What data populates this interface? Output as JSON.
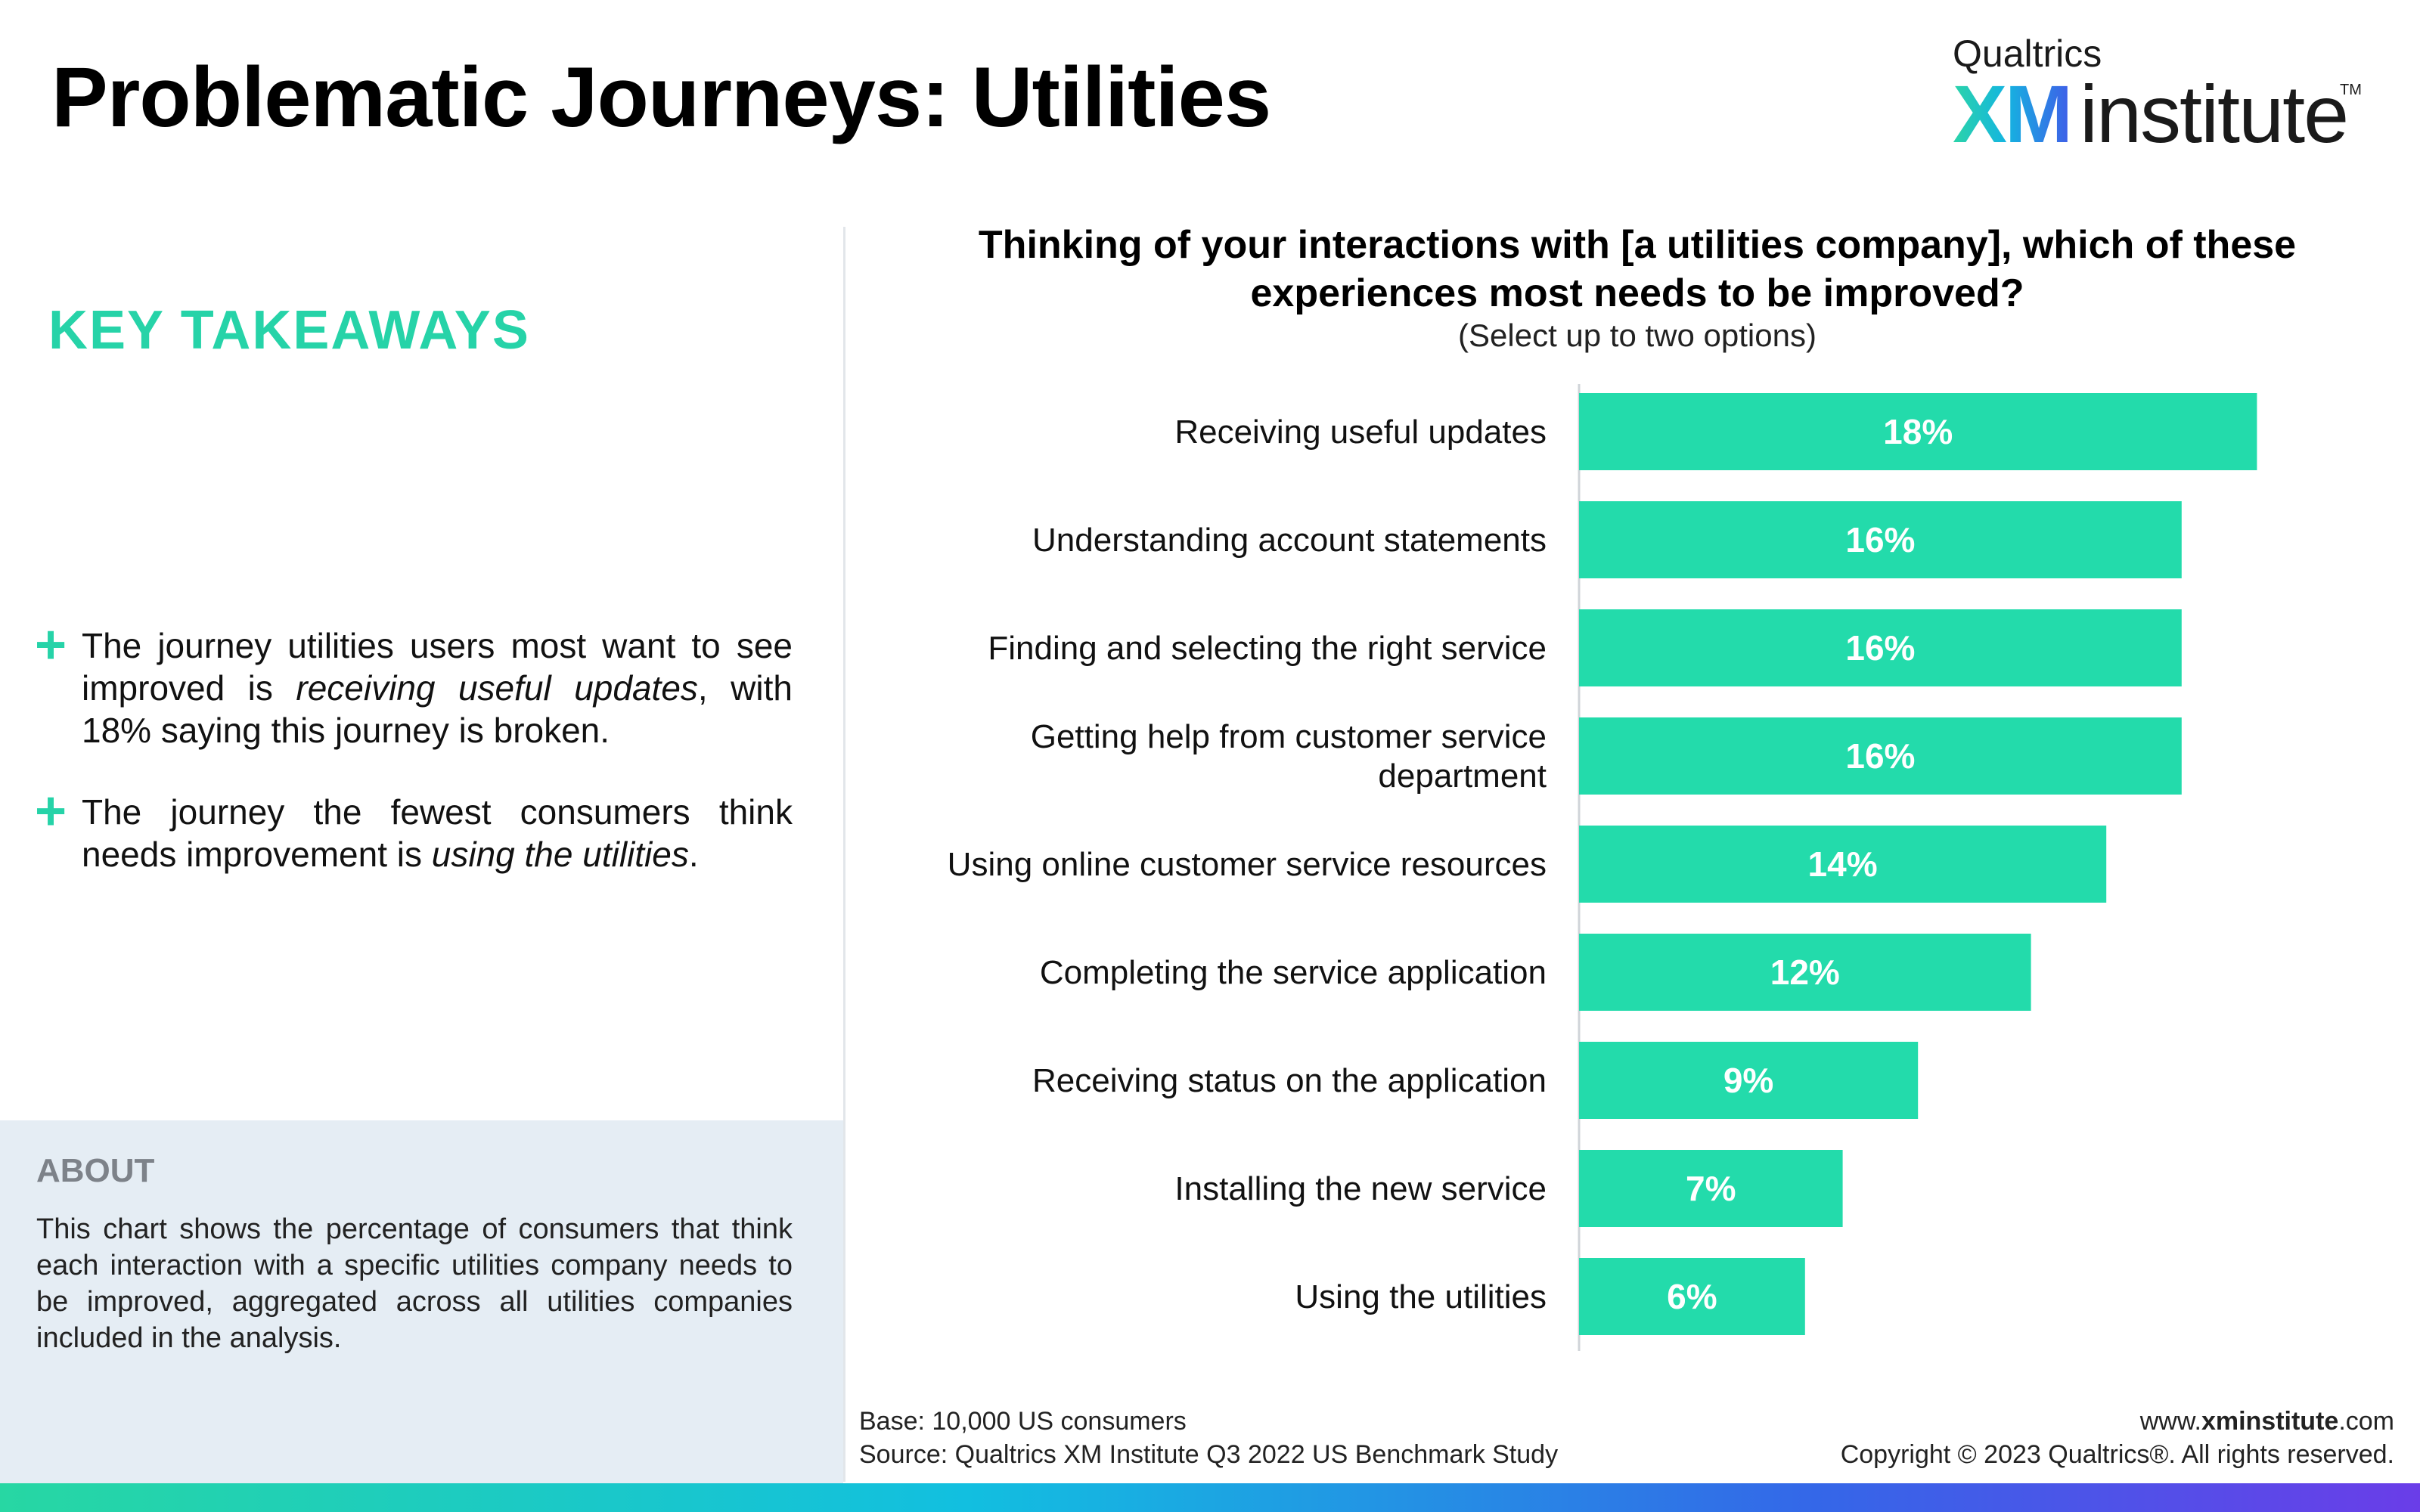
{
  "header": {
    "title": "Problematic Journeys: Utilities",
    "logo": {
      "brand": "Qualtrics",
      "mark": "XM",
      "name": "institute",
      "tm": "TM"
    }
  },
  "takeaways": {
    "heading": "KEY TAKEAWAYS",
    "items": [
      {
        "icon": "plus-icon",
        "before": "The journey utilities users most want to see improved is ",
        "emphasis": "receiving useful updates",
        "after": ", with 18% saying this journey is broken."
      },
      {
        "icon": "plus-icon",
        "before": "The journey the fewest consumers think needs improvement is ",
        "emphasis": "using the utilities",
        "after": "."
      }
    ]
  },
  "about": {
    "heading": "ABOUT",
    "text": "This chart shows the percentage of consumers that think each interaction with a specific utilities company needs to be improved, aggregated across all utilities companies included in the analysis."
  },
  "chart": {
    "question": "Thinking of your interactions with [a utilities company], which of these experiences most needs to be improved?",
    "instruction": "(Select up to two options)"
  },
  "chart_data": {
    "type": "bar",
    "orientation": "horizontal",
    "categories": [
      "Receiving useful updates",
      "Understanding account statements",
      "Finding and selecting the right service",
      "Getting help from customer service department",
      "Using online customer service resources",
      "Completing the service application",
      "Receiving status on the application",
      "Installing the new service",
      "Using the utilities"
    ],
    "values": [
      18,
      16,
      16,
      16,
      14,
      12,
      9,
      7,
      6
    ],
    "data_labels": [
      "18%",
      "16%",
      "16%",
      "16%",
      "14%",
      "12%",
      "9%",
      "7%",
      "6%"
    ],
    "title": "Thinking of your interactions with [a utilities company], which of these experiences most needs to be improved?",
    "subtitle": "(Select up to two options)",
    "xlabel": "",
    "ylabel": "",
    "xlim": [
      0,
      20
    ],
    "grid": false,
    "legend": "none",
    "colors": {
      "bar": "#23dbab",
      "label": "#ffffff"
    }
  },
  "footer": {
    "base": "Base: 10,000 US consumers",
    "source": "Source: Qualtrics XM Institute Q3 2022 US Benchmark Study",
    "website_prefix": "www.",
    "website_bold": "xminstitute",
    "website_suffix": ".com",
    "copyright": "Copyright © 2023 Qualtrics®. All rights reserved."
  },
  "colors": {
    "accent": "#26d3a8",
    "about_bg": "#e5edf4",
    "about_heading": "#7d8289"
  }
}
